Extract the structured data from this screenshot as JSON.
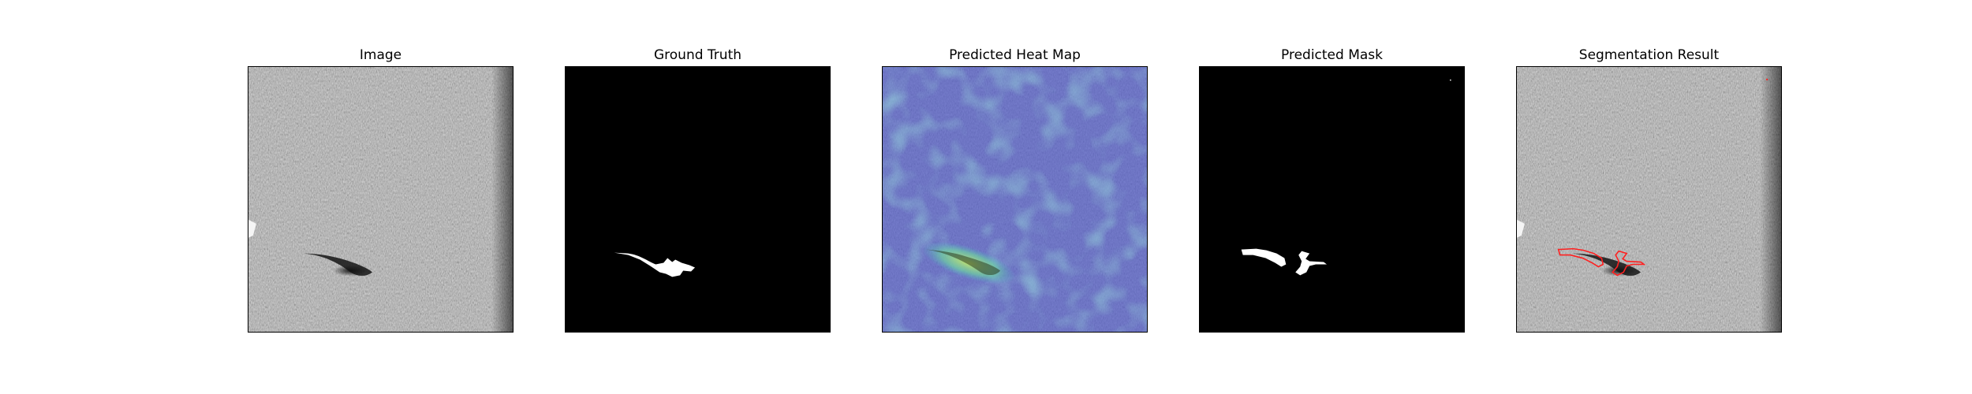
{
  "panels": [
    {
      "title": "Image"
    },
    {
      "title": "Ground Truth"
    },
    {
      "title": "Predicted Heat Map"
    },
    {
      "title": "Predicted Mask"
    },
    {
      "title": "Segmentation Result"
    }
  ],
  "colors": {
    "background": "#ffffff",
    "mask_background": "#000000",
    "mask_foreground": "#ffffff",
    "heatmap_base": "#5a62c8",
    "heatmap_hot": "#9fd36a",
    "contour": "#ff2020"
  }
}
